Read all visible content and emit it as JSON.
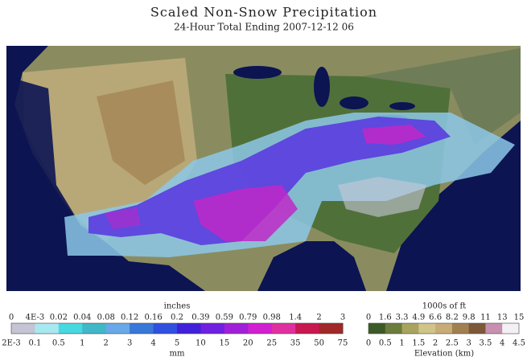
{
  "header": {
    "title": "Scaled Non-Snow Precipitation",
    "subtitle": "24-Hour Total Ending 2007-12-12 06"
  },
  "precip_legend": {
    "top_title": "inches",
    "top_labels": [
      "0",
      "4E-3",
      "0.02",
      "0.04",
      "0.08",
      "0.12",
      "0.16",
      "0.2",
      "0.39",
      "0.59",
      "0.79",
      "0.98",
      "1.4",
      "2",
      "3"
    ],
    "bottom_labels": [
      "2E-3",
      "0.1",
      "0.5",
      "1",
      "2",
      "3",
      "4",
      "5",
      "10",
      "15",
      "20",
      "25",
      "35",
      "50",
      "75"
    ],
    "bottom_title": "mm",
    "colors": [
      "#c4c4d4",
      "#a8e8f0",
      "#48d8e0",
      "#40b8c8",
      "#68a8e8",
      "#3878d8",
      "#3050e0",
      "#4020d8",
      "#7020e0",
      "#a020d8",
      "#d020d0",
      "#e030a0",
      "#c81850",
      "#a02828"
    ]
  },
  "elevation_legend": {
    "top_title": "1000s of ft",
    "top_labels": [
      "0",
      "1.6",
      "3.3",
      "4.9",
      "6.6",
      "8.2",
      "9.8",
      "11",
      "13",
      "15"
    ],
    "bottom_labels": [
      "0",
      "0.5",
      "1",
      "1.5",
      "2",
      "2.5",
      "3",
      "3.5",
      "4",
      "4.5"
    ],
    "bottom_title": "Elevation (km)",
    "colors": [
      "#3c5a28",
      "#6c7c3c",
      "#a8a460",
      "#d0c488",
      "#c8ac78",
      "#a08050",
      "#7c5838",
      "#c890b0",
      "#f4f0f4"
    ]
  }
}
